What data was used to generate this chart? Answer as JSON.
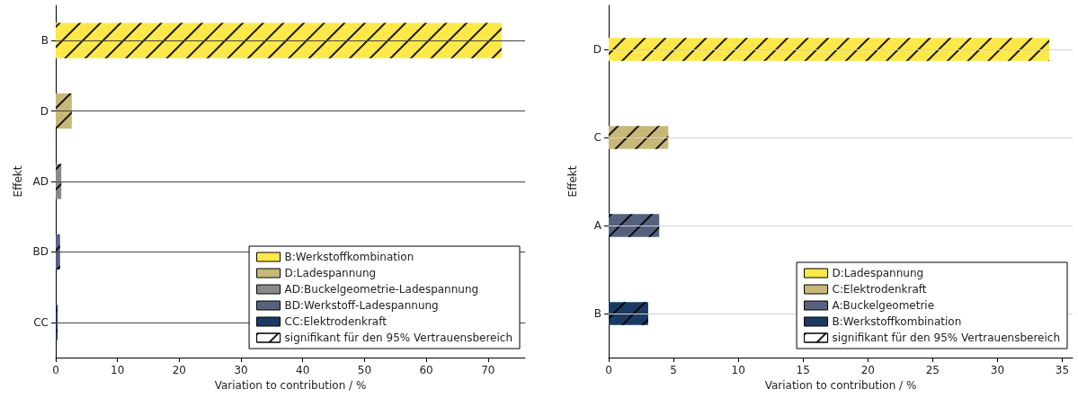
{
  "chart_data": [
    {
      "type": "bar",
      "orientation": "horizontal",
      "categories": [
        "B",
        "D",
        "AD",
        "BD",
        "CC"
      ],
      "xlabel": "Variation to contribution / %",
      "ylabel": "Effekt",
      "xlim": [
        0,
        76
      ],
      "xticks": [
        0,
        10,
        20,
        30,
        40,
        50,
        60,
        70
      ],
      "grid": "y",
      "legend": "bottom right",
      "series": [
        {
          "name": "B:Werkstoffkombination",
          "color": "#fde84a",
          "values": [
            72.2,
            null,
            null,
            null,
            null
          ]
        },
        {
          "name": "D:Ladespannung",
          "color": "#c8b878",
          "values": [
            null,
            2.6,
            null,
            null,
            null
          ]
        },
        {
          "name": "AD:Buckelgeometrie-Ladespannung",
          "color": "#8a8a86",
          "values": [
            null,
            null,
            0.9,
            null,
            null
          ]
        },
        {
          "name": "BD:Werkstoff-Ladespannung",
          "color": "#56617f",
          "values": [
            null,
            null,
            null,
            0.7,
            null
          ]
        },
        {
          "name": "CC:Elektrodenkraft",
          "color": "#1b3a63",
          "values": [
            null,
            null,
            null,
            null,
            0.3
          ]
        },
        {
          "name": "signifikant für den 95% Vertrauensbereich",
          "color": "#ffffff",
          "values": [
            null,
            null,
            null,
            null,
            null
          ]
        }
      ]
    },
    {
      "type": "bar",
      "orientation": "horizontal",
      "categories": [
        "D",
        "C",
        "A",
        "B"
      ],
      "xlabel": "Variation to contribution / %",
      "ylabel": "Effekt",
      "xlim": [
        0,
        35.8
      ],
      "xticks": [
        0,
        5,
        10,
        15,
        20,
        25,
        30,
        35
      ],
      "grid": "y",
      "legend": "bottom right",
      "series": [
        {
          "name": "D:Ladespannung",
          "color": "#fde84a",
          "values": [
            34.0,
            null,
            null,
            null
          ]
        },
        {
          "name": "C:Elektrodenkraft",
          "color": "#c8b878",
          "values": [
            null,
            4.6,
            null,
            null
          ]
        },
        {
          "name": "A:Buckelgeometrie",
          "color": "#56617f",
          "values": [
            null,
            null,
            3.9,
            null
          ]
        },
        {
          "name": "B:Werkstoffkombination",
          "color": "#1b3a63",
          "values": [
            null,
            null,
            null,
            3.05
          ]
        },
        {
          "name": "signifikant für den 95% Vertrauensbereich",
          "color": "#ffffff",
          "values": [
            null,
            null,
            null,
            null
          ]
        }
      ]
    }
  ]
}
